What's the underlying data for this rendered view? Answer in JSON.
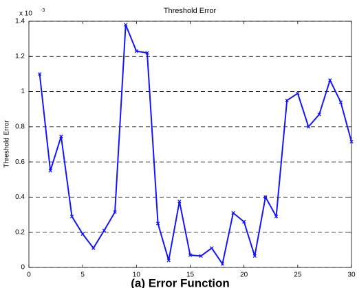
{
  "chart_data": {
    "type": "line",
    "title": "Threshold Error",
    "y_label": "Threshold Error",
    "y_multiplier": {
      "base": "x 10",
      "exponent": "-3"
    },
    "caption": "(a)  Error Function",
    "x": [
      1,
      2,
      3,
      4,
      5,
      6,
      7,
      8,
      9,
      10,
      11,
      12,
      13,
      14,
      15,
      16,
      17,
      18,
      19,
      20,
      21,
      22,
      23,
      24,
      25,
      26,
      27,
      28,
      29,
      30
    ],
    "series": [
      {
        "name": "Threshold Error",
        "color": "#1414ff",
        "values": [
          1.1,
          0.55,
          0.745,
          0.29,
          0.19,
          0.11,
          0.21,
          0.315,
          1.38,
          1.23,
          1.22,
          0.25,
          0.04,
          0.375,
          0.07,
          0.065,
          0.11,
          0.02,
          0.31,
          0.26,
          0.065,
          0.4,
          0.29,
          0.95,
          0.99,
          0.8,
          0.87,
          1.065,
          0.94,
          0.715
        ]
      }
    ],
    "xlim": [
      0,
      30
    ],
    "xticks": [
      0,
      5,
      10,
      15,
      20,
      25,
      30
    ],
    "ylim": [
      0,
      1.4
    ],
    "yticks": [
      0,
      0.2,
      0.4,
      0.6,
      0.8,
      1,
      1.2,
      1.4
    ],
    "grid": true
  }
}
